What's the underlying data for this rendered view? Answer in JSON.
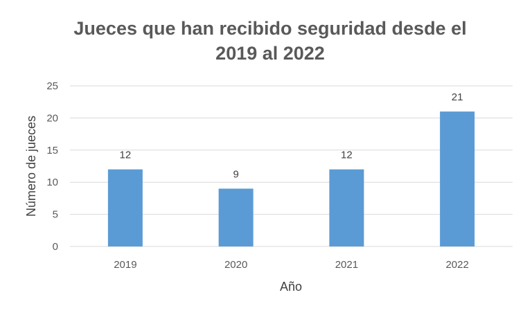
{
  "chart_data": {
    "type": "bar",
    "title_line1": "Jueces que han recibido seguridad desde el",
    "title_line2": "2019 al 2022",
    "categories": [
      "2019",
      "2020",
      "2021",
      "2022"
    ],
    "values": [
      12,
      9,
      12,
      21
    ],
    "data_labels": [
      "12",
      "9",
      "12",
      "21"
    ],
    "xlabel": "Año",
    "ylabel": "Número de jueces",
    "ylim": [
      0,
      25
    ],
    "yticks": [
      "0",
      "5",
      "10",
      "15",
      "20",
      "25"
    ],
    "grid": true,
    "bar_color": "#5b9bd5",
    "grid_color": "#d9d9d9"
  }
}
